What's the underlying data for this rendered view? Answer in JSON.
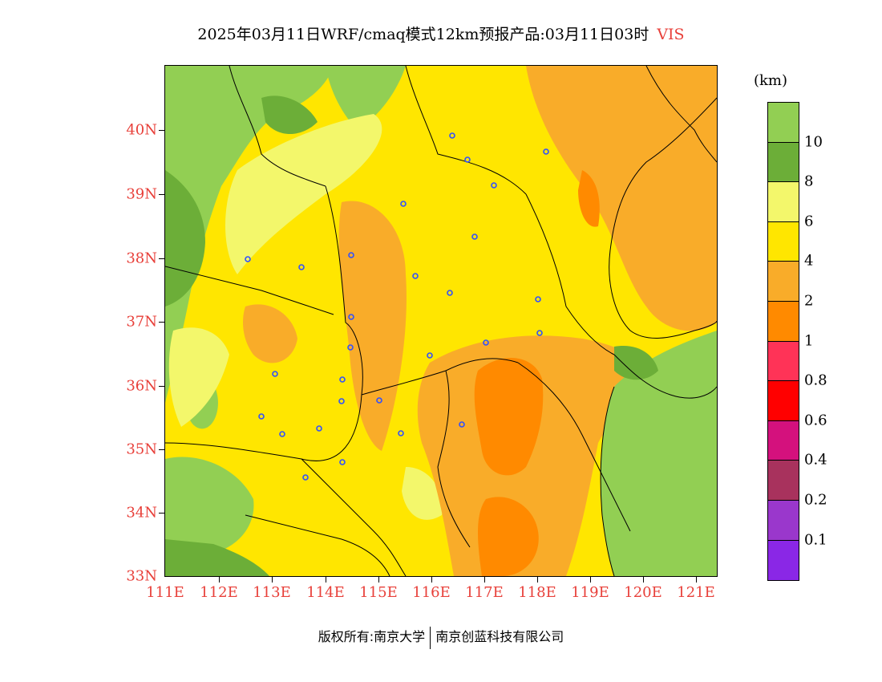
{
  "title": "2025年03月11日WRF/cmaq模式12km预报产品:03月11日03时",
  "variable": "VIS",
  "unit": "(km)",
  "lat_labels": [
    "40N",
    "39N",
    "38N",
    "37N",
    "36N",
    "35N",
    "34N",
    "33N"
  ],
  "lon_labels": [
    "111E",
    "112E",
    "113E",
    "114E",
    "115E",
    "116E",
    "117E",
    "118E",
    "119E",
    "120E",
    "121E"
  ],
  "colorbar": {
    "colors": [
      "#92cf53",
      "#6cae38",
      "#f3f76b",
      "#ffe600",
      "#f9ac29",
      "#ff8a00",
      "#ff3357",
      "#ff0000",
      "#d4117d",
      "#a8325d",
      "#9a37cc",
      "#8a27e6"
    ],
    "labels": [
      "10",
      "8",
      "6",
      "4",
      "2",
      "1",
      "0.8",
      "0.6",
      "0.4",
      "0.2",
      "0.1"
    ]
  },
  "footer": {
    "left": "版权所有:南京大学",
    "right": "南京创蓝科技有限公司"
  }
}
